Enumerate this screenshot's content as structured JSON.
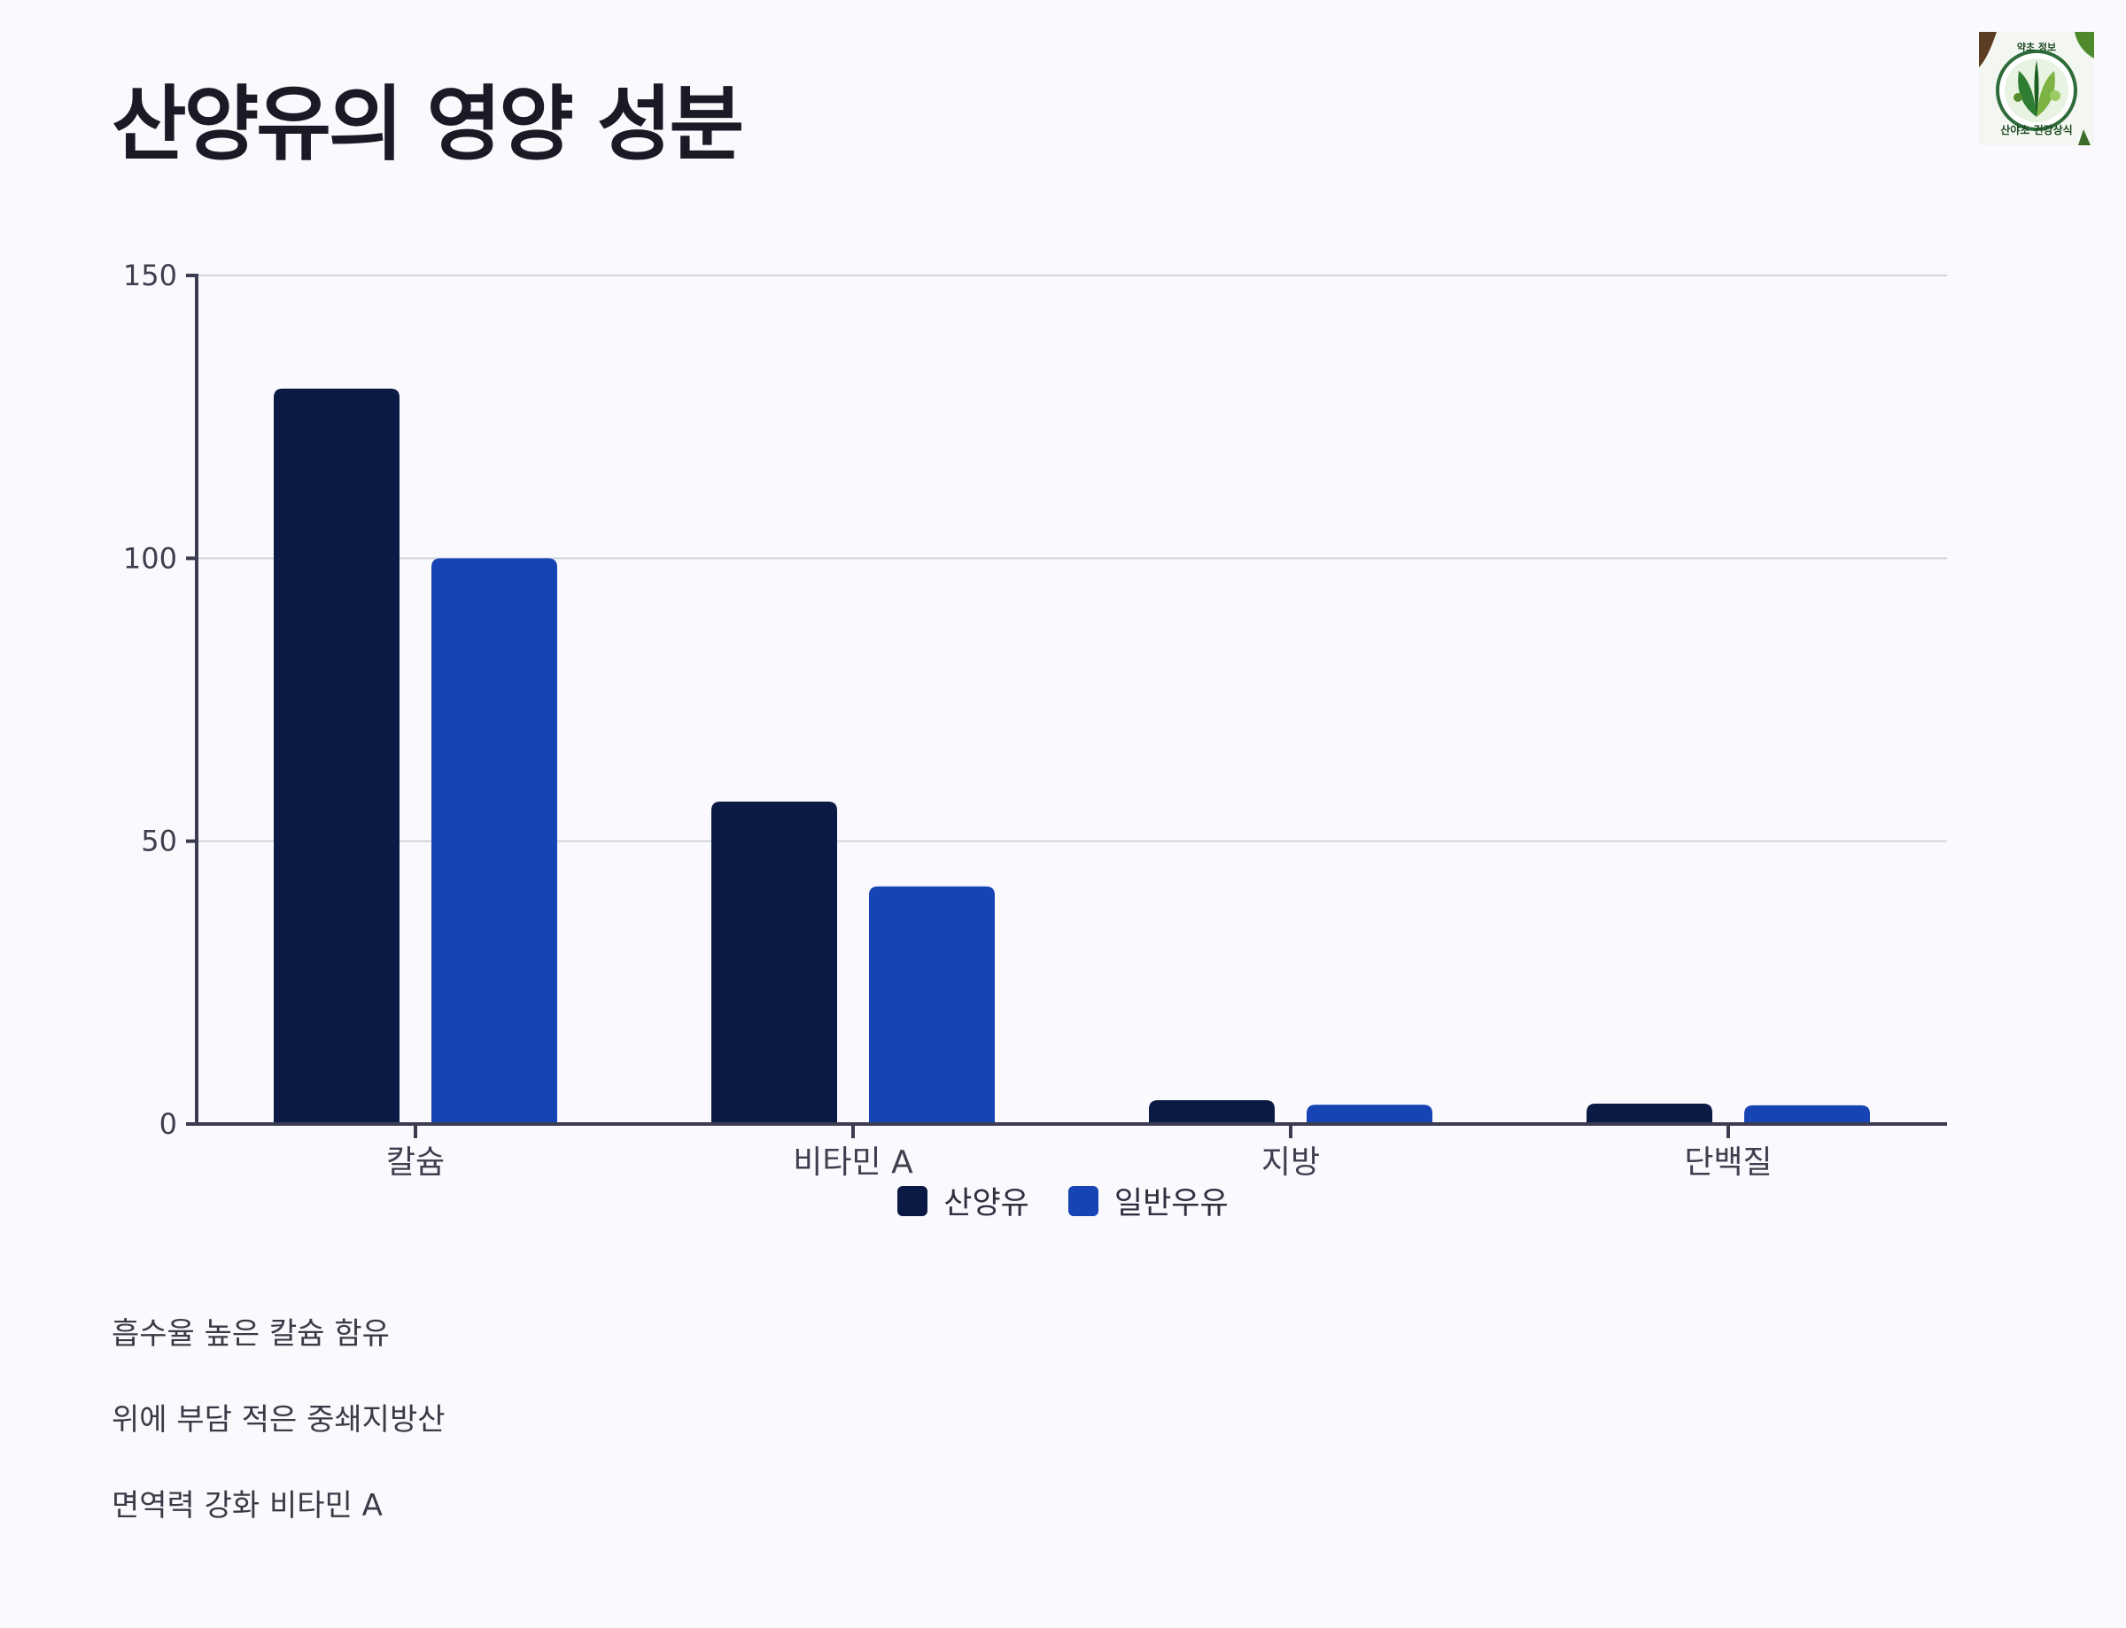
{
  "title": "산양유의 영양 성분",
  "logo": {
    "top_text": "약초 정보",
    "bottom_text": "산야초 건강상식",
    "colors": {
      "leaf": "#2f7d32",
      "leaf_light": "#7cb342",
      "ring": "#2e6b3a"
    }
  },
  "chart_data": {
    "type": "bar",
    "categories": [
      "칼슘",
      "비타민 A",
      "지방",
      "단백질"
    ],
    "series": [
      {
        "name": "산양유",
        "color": "#0b1a44",
        "values": [
          130,
          57,
          4.2,
          3.6
        ]
      },
      {
        "name": "일반우유",
        "color": "#1744b5",
        "values": [
          100,
          42,
          3.4,
          3.3
        ]
      }
    ],
    "yticks": [
      0,
      50,
      100,
      150
    ],
    "ylim": [
      0,
      150
    ],
    "grid": true,
    "legend_position": "bottom-center",
    "xlabel": "",
    "ylabel": ""
  },
  "notes": [
    "흡수율 높은 칼슘 함유",
    "위에 부담 적은 중쇄지방산",
    "면역력 강화 비타민 A"
  ]
}
